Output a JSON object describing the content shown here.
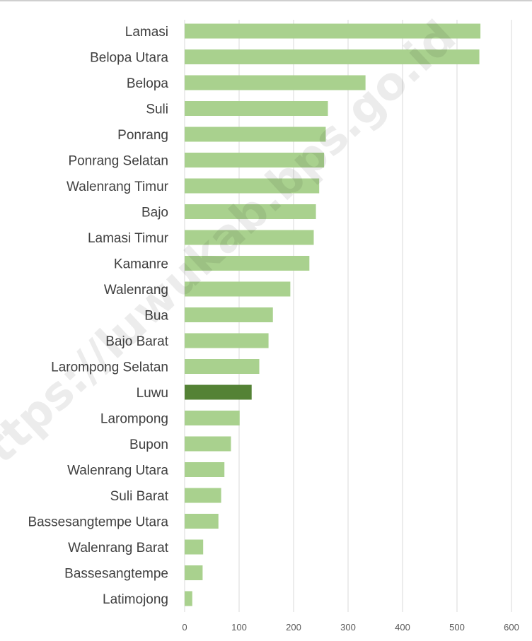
{
  "chart_data": {
    "type": "bar",
    "orientation": "horizontal",
    "categories": [
      "Lamasi",
      "Belopa Utara",
      "Belopa",
      "Suli",
      "Ponrang",
      "Ponrang Selatan",
      "Walenrang Timur",
      "Bajo",
      "Lamasi Timur",
      "Kamanre",
      "Walenrang",
      "Bua",
      "Bajo Barat",
      "Larompong Selatan",
      "Luwu",
      "Larompong",
      "Bupon",
      "Walenrang Utara",
      "Suli Barat",
      "Bassesangtempe Utara",
      "Walenrang Barat",
      "Bassesangtempe",
      "Latimojong"
    ],
    "values": [
      543,
      541,
      332,
      263,
      259,
      256,
      247,
      241,
      237,
      229,
      194,
      162,
      154,
      137,
      123,
      101,
      85,
      73,
      67,
      62,
      34,
      33,
      14
    ],
    "highlight_category": "Luwu",
    "colors": {
      "bar": "#a9d18e",
      "highlight": "#548235",
      "grid": "#d9d9d9"
    },
    "xlim": [
      0,
      600
    ],
    "xticks": [
      "0",
      "100",
      "200",
      "300",
      "400",
      "500",
      "600"
    ],
    "grid": true,
    "legend": "none",
    "title": "",
    "xlabel": "",
    "ylabel": ""
  },
  "watermark": "https://luwukab.bps.go.id"
}
